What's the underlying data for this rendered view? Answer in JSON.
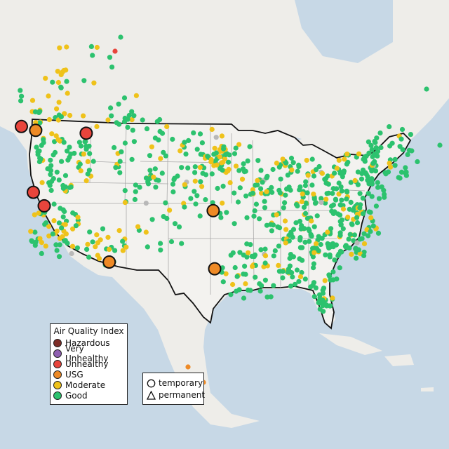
{
  "colors": {
    "ocean": "#c7d8e6",
    "land": "#eeede9",
    "us_land": "#f3f2ef",
    "border": "#111111",
    "state_line": "#a9a9a9",
    "Hazardous": "#7e2d26",
    "Very Unhealthy": "#8f5fb1",
    "Unhealthy": "#e8453c",
    "USG": "#ee8a26",
    "Moderate": "#efc21a",
    "Good": "#2cc26e",
    "no_data": "#b8b8b8"
  },
  "legend": {
    "title": "Air Quality Index",
    "categories": [
      "Hazardous",
      "Very Unhealthy",
      "Unhealthy",
      "USG",
      "Moderate",
      "Good"
    ]
  },
  "site_type_legend": {
    "temporary": "temporary",
    "permanent": "permanent"
  },
  "highlighted_monitors": [
    {
      "category": "Unhealthy",
      "lon": -122.3,
      "lat": 47.4
    },
    {
      "category": "USG",
      "lon": -120.5,
      "lat": 47.0
    },
    {
      "category": "Unhealthy",
      "lon": -114.0,
      "lat": 46.7
    },
    {
      "category": "Unhealthy",
      "lon": -121.5,
      "lat": 40.6
    },
    {
      "category": "Unhealthy",
      "lon": -120.2,
      "lat": 39.2
    },
    {
      "category": "USG",
      "lon": -111.9,
      "lat": 33.4
    },
    {
      "category": "USG",
      "lon": -97.6,
      "lat": 38.7
    },
    {
      "category": "USG",
      "lon": -97.4,
      "lat": 32.7
    }
  ]
}
